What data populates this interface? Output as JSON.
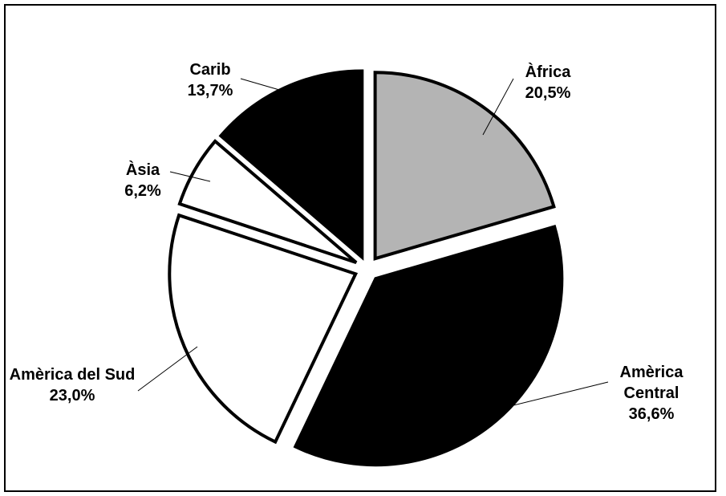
{
  "chart_data": {
    "type": "pie",
    "categories": [
      "Àfrica",
      "Amèrica Central",
      "Amèrica del Sud",
      "Àsia",
      "Carib"
    ],
    "values": [
      20.5,
      36.6,
      23.0,
      6.2,
      13.7
    ],
    "value_labels": [
      "20,5%",
      "36,6%",
      "23,0%",
      "6,2%",
      "13,7%"
    ],
    "colors": [
      "#b4b4b4",
      "#000000",
      "#ffffff",
      "#ffffff",
      "#000000"
    ]
  }
}
